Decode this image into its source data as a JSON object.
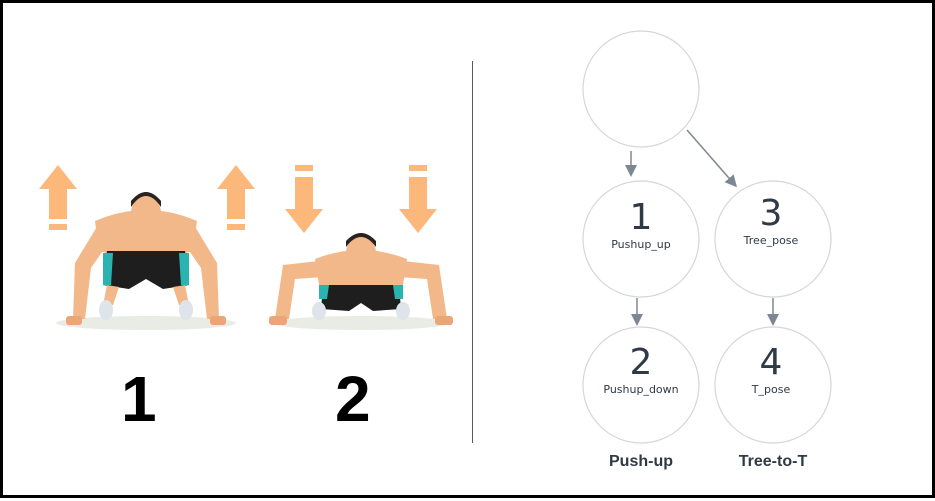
{
  "left_panel": {
    "figure_1_number": "1",
    "figure_2_number": "2"
  },
  "diagram": {
    "states": [
      {
        "id": "start",
        "number": "",
        "label": ""
      },
      {
        "id": "s1",
        "number": "1",
        "label": "Pushup_up"
      },
      {
        "id": "s2",
        "number": "2",
        "label": "Pushup_down"
      },
      {
        "id": "s3",
        "number": "3",
        "label": "Tree_pose"
      },
      {
        "id": "s4",
        "number": "4",
        "label": "T_pose"
      }
    ],
    "groups": [
      {
        "label": "Push-up"
      },
      {
        "label": "Tree-to-T"
      }
    ],
    "edges": [
      {
        "from": "start",
        "to": "s1"
      },
      {
        "from": "start",
        "to": "s3"
      },
      {
        "from": "s1",
        "to": "s2"
      },
      {
        "from": "s3",
        "to": "s4"
      }
    ]
  },
  "colors": {
    "arrow_orange": "#fbb87a",
    "skin": "#f2b88a",
    "shorts": "#1e1e1e",
    "shorts_accent": "#2bb3b1",
    "node_stroke": "#d6d6d6",
    "edge": "#7d8793"
  }
}
